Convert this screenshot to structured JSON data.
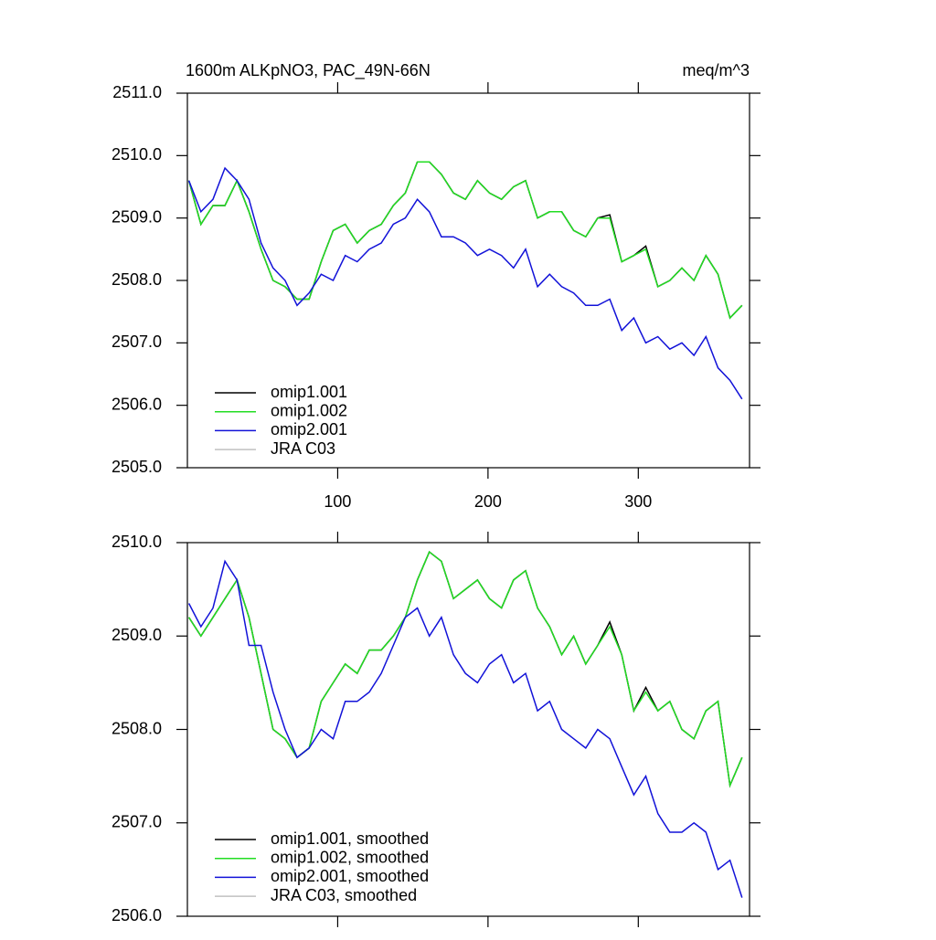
{
  "chart_data": [
    {
      "type": "line",
      "title": "1600m ALKpNO3, PAC_49N-66N",
      "units": "meq/m^3",
      "x": [
        1,
        9,
        17,
        25,
        33,
        41,
        49,
        57,
        65,
        73,
        81,
        89,
        97,
        105,
        113,
        121,
        129,
        137,
        145,
        153,
        161,
        169,
        177,
        185,
        193,
        201,
        209,
        217,
        225,
        233,
        241,
        249,
        257,
        265,
        273,
        281,
        289,
        297,
        305,
        313,
        321,
        329,
        337,
        345,
        353,
        361,
        369
      ],
      "xlim": [
        0,
        374
      ],
      "xticks": [
        100,
        200,
        300
      ],
      "ylim": [
        2505,
        2511
      ],
      "yticks": [
        {
          "value": 2505,
          "label": "2505.0"
        },
        {
          "value": 2506,
          "label": "2506.0"
        },
        {
          "value": 2507,
          "label": "2507.0"
        },
        {
          "value": 2508,
          "label": "2508.0"
        },
        {
          "value": 2509,
          "label": "2509.0"
        },
        {
          "value": 2510,
          "label": "2510.0"
        },
        {
          "value": 2511,
          "label": "2511.0"
        }
      ],
      "legend": "lower left",
      "series": [
        {
          "name": "omip1.001",
          "color": "#000000",
          "values": [
            2509.6,
            2508.9,
            2509.2,
            2509.2,
            2509.6,
            2509.1,
            2508.5,
            2508.0,
            2507.9,
            2507.7,
            2507.7,
            2508.3,
            2508.8,
            2508.9,
            2508.6,
            2508.8,
            2508.9,
            2509.2,
            2509.4,
            2509.9,
            2509.9,
            2509.7,
            2509.4,
            2509.3,
            2509.6,
            2509.4,
            2509.3,
            2509.5,
            2509.6,
            2509.0,
            2509.1,
            2509.1,
            2508.8,
            2508.7,
            2509.0,
            2509.05,
            2508.3,
            2508.4,
            2508.55,
            2507.9,
            2508.0,
            2508.2,
            2508.0,
            2508.4,
            2508.1,
            2507.4,
            2507.6
          ]
        },
        {
          "name": "omip1.002",
          "color": "#22dd22",
          "values": [
            2509.6,
            2508.9,
            2509.2,
            2509.2,
            2509.6,
            2509.1,
            2508.5,
            2508.0,
            2507.9,
            2507.7,
            2507.7,
            2508.3,
            2508.8,
            2508.9,
            2508.6,
            2508.8,
            2508.9,
            2509.2,
            2509.4,
            2509.9,
            2509.9,
            2509.7,
            2509.4,
            2509.3,
            2509.6,
            2509.4,
            2509.3,
            2509.5,
            2509.6,
            2509.0,
            2509.1,
            2509.1,
            2508.8,
            2508.7,
            2509.0,
            2509.0,
            2508.3,
            2508.4,
            2508.5,
            2507.9,
            2508.0,
            2508.2,
            2508.0,
            2508.4,
            2508.1,
            2507.4,
            2507.6
          ]
        },
        {
          "name": "omip2.001",
          "color": "#1212d8",
          "values": [
            2509.6,
            2509.1,
            2509.3,
            2509.8,
            2509.6,
            2509.3,
            2508.6,
            2508.2,
            2508.0,
            2507.6,
            2507.8,
            2508.1,
            2508.0,
            2508.4,
            2508.3,
            2508.5,
            2508.6,
            2508.9,
            2509.0,
            2509.3,
            2509.1,
            2508.7,
            2508.7,
            2508.6,
            2508.4,
            2508.5,
            2508.4,
            2508.2,
            2508.5,
            2507.9,
            2508.1,
            2507.9,
            2507.8,
            2507.6,
            2507.6,
            2507.7,
            2507.2,
            2507.4,
            2507.0,
            2507.1,
            2506.9,
            2507.0,
            2506.8,
            2507.1,
            2506.6,
            2506.4,
            2506.1
          ]
        },
        {
          "name": "JRA C03",
          "color": "#c0c0c0",
          "values": [
            null,
            null,
            null,
            null,
            null,
            null,
            null,
            null,
            null,
            null,
            null,
            null,
            null,
            null,
            null,
            null,
            null,
            null,
            null,
            null,
            null,
            null,
            null,
            null,
            null,
            null,
            null,
            null,
            null,
            null,
            null,
            null,
            null,
            null,
            null,
            null,
            null,
            null,
            null,
            null,
            null,
            null,
            null,
            null,
            null,
            null,
            null
          ]
        }
      ]
    },
    {
      "type": "line",
      "x": [
        1,
        9,
        17,
        25,
        33,
        41,
        49,
        57,
        65,
        73,
        81,
        89,
        97,
        105,
        113,
        121,
        129,
        137,
        145,
        153,
        161,
        169,
        177,
        185,
        193,
        201,
        209,
        217,
        225,
        233,
        241,
        249,
        257,
        265,
        273,
        281,
        289,
        297,
        305,
        313,
        321,
        329,
        337,
        345,
        353,
        361,
        369
      ],
      "xlim": [
        0,
        374
      ],
      "xticks": [
        100,
        200,
        300
      ],
      "ylim": [
        2506,
        2510
      ],
      "yticks": [
        {
          "value": 2506,
          "label": "2506.0"
        },
        {
          "value": 2507,
          "label": "2507.0"
        },
        {
          "value": 2508,
          "label": "2508.0"
        },
        {
          "value": 2509,
          "label": "2509.0"
        },
        {
          "value": 2510,
          "label": "2510.0"
        }
      ],
      "legend": "lower left",
      "series": [
        {
          "name": "omip1.001, smoothed",
          "color": "#000000",
          "values": [
            2509.2,
            2509.0,
            2509.2,
            2509.4,
            2509.6,
            2509.2,
            2508.6,
            2508.0,
            2507.9,
            2507.7,
            2507.8,
            2508.3,
            2508.5,
            2508.7,
            2508.6,
            2508.85,
            2508.85,
            2509.0,
            2509.2,
            2509.6,
            2509.9,
            2509.8,
            2509.4,
            2509.5,
            2509.6,
            2509.4,
            2509.3,
            2509.6,
            2509.7,
            2509.3,
            2509.1,
            2508.8,
            2509.0,
            2508.7,
            2508.9,
            2509.15,
            2508.8,
            2508.2,
            2508.45,
            2508.2,
            2508.3,
            2508.0,
            2507.9,
            2508.2,
            2508.3,
            2507.4,
            2507.7
          ]
        },
        {
          "name": "omip1.002, smoothed",
          "color": "#22dd22",
          "values": [
            2509.2,
            2509.0,
            2509.2,
            2509.4,
            2509.6,
            2509.2,
            2508.6,
            2508.0,
            2507.9,
            2507.7,
            2507.8,
            2508.3,
            2508.5,
            2508.7,
            2508.6,
            2508.85,
            2508.85,
            2509.0,
            2509.2,
            2509.6,
            2509.9,
            2509.8,
            2509.4,
            2509.5,
            2509.6,
            2509.4,
            2509.3,
            2509.6,
            2509.7,
            2509.3,
            2509.1,
            2508.8,
            2509.0,
            2508.7,
            2508.9,
            2509.1,
            2508.8,
            2508.2,
            2508.4,
            2508.2,
            2508.3,
            2508.0,
            2507.9,
            2508.2,
            2508.3,
            2507.4,
            2507.7
          ]
        },
        {
          "name": "omip2.001, smoothed",
          "color": "#1212d8",
          "values": [
            2509.35,
            2509.1,
            2509.3,
            2509.8,
            2509.6,
            2508.9,
            2508.9,
            2508.4,
            2508.0,
            2507.7,
            2507.8,
            2508.0,
            2507.9,
            2508.3,
            2508.3,
            2508.4,
            2508.6,
            2508.9,
            2509.2,
            2509.3,
            2509.0,
            2509.2,
            2508.8,
            2508.6,
            2508.5,
            2508.7,
            2508.8,
            2508.5,
            2508.6,
            2508.2,
            2508.3,
            2508.0,
            2507.9,
            2507.8,
            2508.0,
            2507.9,
            2507.6,
            2507.3,
            2507.5,
            2507.1,
            2506.9,
            2506.9,
            2507.0,
            2506.9,
            2506.5,
            2506.6,
            2506.2
          ]
        },
        {
          "name": "JRA C03, smoothed",
          "color": "#c0c0c0",
          "values": [
            null,
            null,
            null,
            null,
            null,
            null,
            null,
            null,
            null,
            null,
            null,
            null,
            null,
            null,
            null,
            null,
            null,
            null,
            null,
            null,
            null,
            null,
            null,
            null,
            null,
            null,
            null,
            null,
            null,
            null,
            null,
            null,
            null,
            null,
            null,
            null,
            null,
            null,
            null,
            null,
            null,
            null,
            null,
            null,
            null,
            null,
            null
          ]
        }
      ]
    }
  ]
}
